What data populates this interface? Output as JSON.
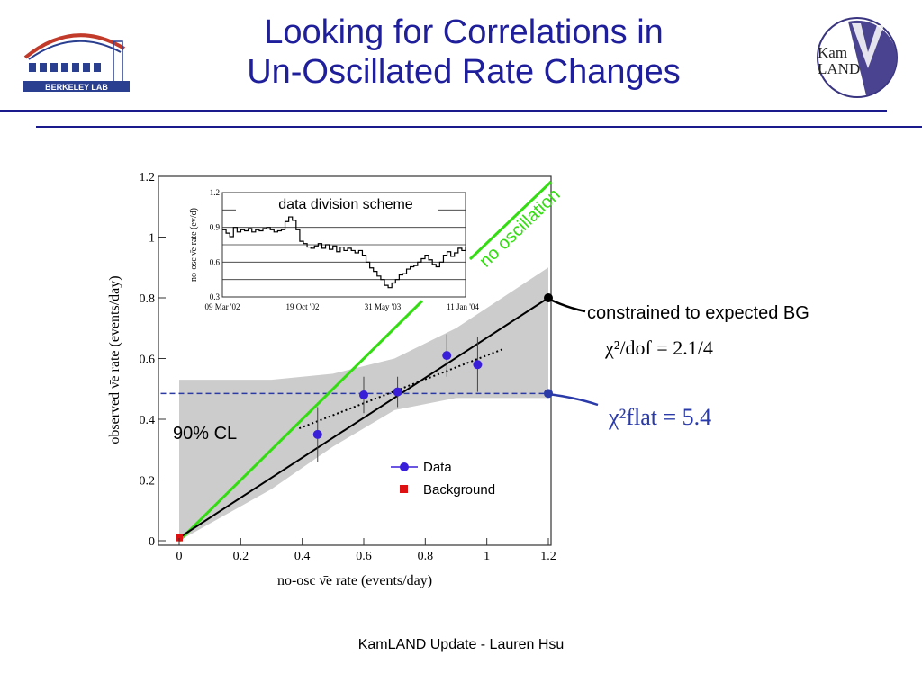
{
  "slide": {
    "title_line1": "Looking for Correlations in",
    "title_line2": "Un-Oscillated Rate Changes",
    "footer": "KamLAND Update - Lauren Hsu",
    "logo_left_text": "BERKELEY LAB",
    "logo_right_text": "KamLAND"
  },
  "colors": {
    "title": "#1f1f9c",
    "rule": "#1a1a8c",
    "data_points": "#3a1fd9",
    "no_oscillation_line": "#33dd11",
    "fit_line": "#000000",
    "flat_line": "#2a3aa8",
    "band": "#cccccc",
    "background_marker": "#dd1111"
  },
  "chart_data": [
    {
      "type": "scatter",
      "xlabel": "no-osc ν̄e rate (events/day)",
      "ylabel": "observed ν̄e rate (events/day)",
      "xlim": [
        0,
        1.2
      ],
      "ylim": [
        0,
        1.2
      ],
      "x_ticks": [
        "0",
        "0.2",
        "0.4",
        "0.6",
        "0.8",
        "1",
        "1.2"
      ],
      "y_ticks": [
        "0",
        "0.2",
        "0.4",
        "0.6",
        "0.8",
        "1",
        "1.2"
      ],
      "grid": false,
      "legend_position": "bottom-right",
      "series": [
        {
          "name": "Data",
          "points": [
            {
              "x": 0.45,
              "y": 0.35,
              "err": 0.09
            },
            {
              "x": 0.6,
              "y": 0.48,
              "err": 0.06
            },
            {
              "x": 0.71,
              "y": 0.49,
              "err": 0.05
            },
            {
              "x": 0.87,
              "y": 0.61,
              "err": 0.07
            },
            {
              "x": 0.97,
              "y": 0.58,
              "err": 0.09
            }
          ]
        },
        {
          "name": "Background",
          "points": [
            {
              "x": 0.0,
              "y": 0.01
            }
          ]
        }
      ],
      "lines": {
        "no_oscillation": {
          "x": [
            0,
            0.79
          ],
          "y": [
            0,
            0.79
          ]
        },
        "fit_constrained": {
          "x": [
            0,
            1.2
          ],
          "y": [
            0.01,
            0.8
          ]
        },
        "fit_free": {
          "x": [
            0.39,
            1.05
          ],
          "y": [
            0.37,
            0.63
          ]
        },
        "flat": {
          "x": [
            -0.06,
            1.2
          ],
          "y": [
            0.485,
            0.485
          ]
        }
      },
      "band_90cl": {
        "x": [
          0.0,
          0.3,
          0.5,
          0.7,
          0.9,
          1.2
        ],
        "upper": [
          0.53,
          0.53,
          0.55,
          0.6,
          0.7,
          0.9
        ],
        "lower": [
          0.0,
          0.17,
          0.31,
          0.43,
          0.47,
          0.47
        ]
      },
      "annotations": {
        "cl_label": "90% CL",
        "no_oscillation_label": "no oscillation",
        "constrained_label": "constrained to expected BG",
        "chi2_dof": "χ²/dof = 2.1/4",
        "chi2_flat": "χ²flat = 5.4"
      }
    },
    {
      "type": "line",
      "title": "data division scheme",
      "ylabel": "no-osc ν̄e rate (ev/d)",
      "ylim": [
        0.3,
        1.2
      ],
      "y_ticks": [
        "0.3",
        "0.6",
        "0.9",
        "1.2"
      ],
      "x_ticks": [
        "09 Mar '02",
        "19 Oct '02",
        "31 May '03",
        "11 Jan '04"
      ],
      "y_gridlines": [
        0.3,
        0.45,
        0.6,
        0.75,
        0.9,
        1.05,
        1.2
      ],
      "series": [
        {
          "values": [
            0.88,
            0.85,
            0.82,
            0.9,
            0.86,
            0.88,
            0.87,
            0.89,
            0.86,
            0.88,
            0.87,
            0.89,
            0.9,
            0.88,
            0.86,
            0.87,
            0.88,
            0.95,
            0.99,
            0.96,
            0.88,
            0.78,
            0.76,
            0.73,
            0.72,
            0.74,
            0.76,
            0.72,
            0.75,
            0.71,
            0.74,
            0.69,
            0.73,
            0.7,
            0.72,
            0.7,
            0.68,
            0.7,
            0.66,
            0.6,
            0.55,
            0.52,
            0.48,
            0.45,
            0.4,
            0.38,
            0.42,
            0.45,
            0.49,
            0.5,
            0.54,
            0.56,
            0.57,
            0.6,
            0.63,
            0.66,
            0.62,
            0.58,
            0.56,
            0.6,
            0.66,
            0.69,
            0.65,
            0.68,
            0.72,
            0.7,
            0.73
          ]
        }
      ]
    }
  ]
}
